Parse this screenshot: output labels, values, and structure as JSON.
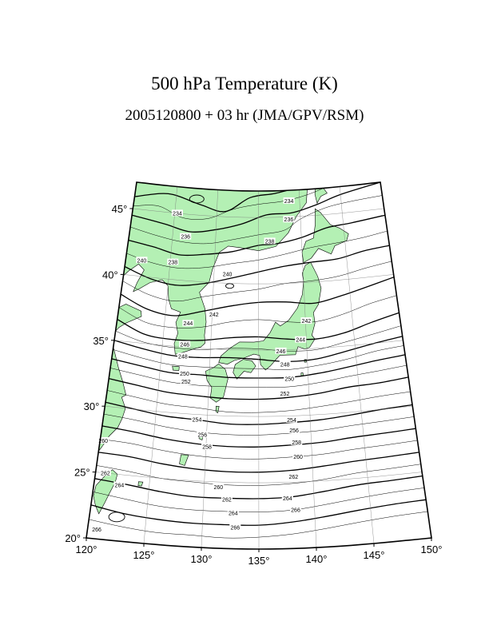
{
  "title": "500 hPa Temperature (K)",
  "subtitle": "2005120800 + 03 hr (JMA/GPV/RSM)",
  "map": {
    "projection": "conic",
    "lon_range": [
      120,
      150
    ],
    "lat_range": [
      20,
      47
    ],
    "land_color": "#b4f0b4",
    "lon_ticks": [
      "120°",
      "125°",
      "130°",
      "135°",
      "140°",
      "145°",
      "150°"
    ],
    "lat_ticks": [
      "20°",
      "25°",
      "30°",
      "35°",
      "40°",
      "45°"
    ],
    "contour_labels": [
      {
        "text": "234",
        "lon": 138.7,
        "lat": 46.2
      },
      {
        "text": "234",
        "lon": 125.3,
        "lat": 45.0
      },
      {
        "text": "236",
        "lon": 138.6,
        "lat": 44.8
      },
      {
        "text": "236",
        "lon": 126.5,
        "lat": 43.3
      },
      {
        "text": "238",
        "lon": 136.3,
        "lat": 43.2
      },
      {
        "text": "238",
        "lon": 125.3,
        "lat": 41.3
      },
      {
        "text": "240",
        "lon": 121.8,
        "lat": 41.2
      },
      {
        "text": "240",
        "lon": 131.5,
        "lat": 40.7
      },
      {
        "text": "242",
        "lon": 130.2,
        "lat": 37.6
      },
      {
        "text": "242",
        "lon": 140.1,
        "lat": 37.1
      },
      {
        "text": "244",
        "lon": 127.5,
        "lat": 36.8
      },
      {
        "text": "244",
        "lon": 139.4,
        "lat": 35.7
      },
      {
        "text": "246",
        "lon": 127.3,
        "lat": 35.2
      },
      {
        "text": "246",
        "lon": 137.3,
        "lat": 34.9
      },
      {
        "text": "248",
        "lon": 127.2,
        "lat": 34.3
      },
      {
        "text": "248",
        "lon": 137.7,
        "lat": 33.9
      },
      {
        "text": "250",
        "lon": 127.5,
        "lat": 33.0
      },
      {
        "text": "250",
        "lon": 138.1,
        "lat": 32.8
      },
      {
        "text": "252",
        "lon": 127.7,
        "lat": 32.4
      },
      {
        "text": "252",
        "lon": 137.6,
        "lat": 31.7
      },
      {
        "text": "254",
        "lon": 129.0,
        "lat": 29.6
      },
      {
        "text": "254",
        "lon": 138.2,
        "lat": 29.7
      },
      {
        "text": "256",
        "lon": 129.6,
        "lat": 28.5
      },
      {
        "text": "256",
        "lon": 138.4,
        "lat": 28.9
      },
      {
        "text": "258",
        "lon": 130.1,
        "lat": 27.6
      },
      {
        "text": "258",
        "lon": 138.6,
        "lat": 28.0
      },
      {
        "text": "260",
        "lon": 120.3,
        "lat": 27.4
      },
      {
        "text": "260",
        "lon": 138.7,
        "lat": 26.9
      },
      {
        "text": "262",
        "lon": 120.9,
        "lat": 25.0
      },
      {
        "text": "260",
        "lon": 131.3,
        "lat": 24.6
      },
      {
        "text": "262",
        "lon": 138.2,
        "lat": 25.4
      },
      {
        "text": "264",
        "lon": 122.3,
        "lat": 24.2
      },
      {
        "text": "262",
        "lon": 132.1,
        "lat": 23.7
      },
      {
        "text": "264",
        "lon": 137.6,
        "lat": 23.8
      },
      {
        "text": "264",
        "lon": 132.7,
        "lat": 22.7
      },
      {
        "text": "266",
        "lon": 138.3,
        "lat": 22.9
      },
      {
        "text": "266",
        "lon": 132.9,
        "lat": 21.6
      },
      {
        "text": "266",
        "lon": 120.8,
        "lat": 20.7
      }
    ]
  }
}
